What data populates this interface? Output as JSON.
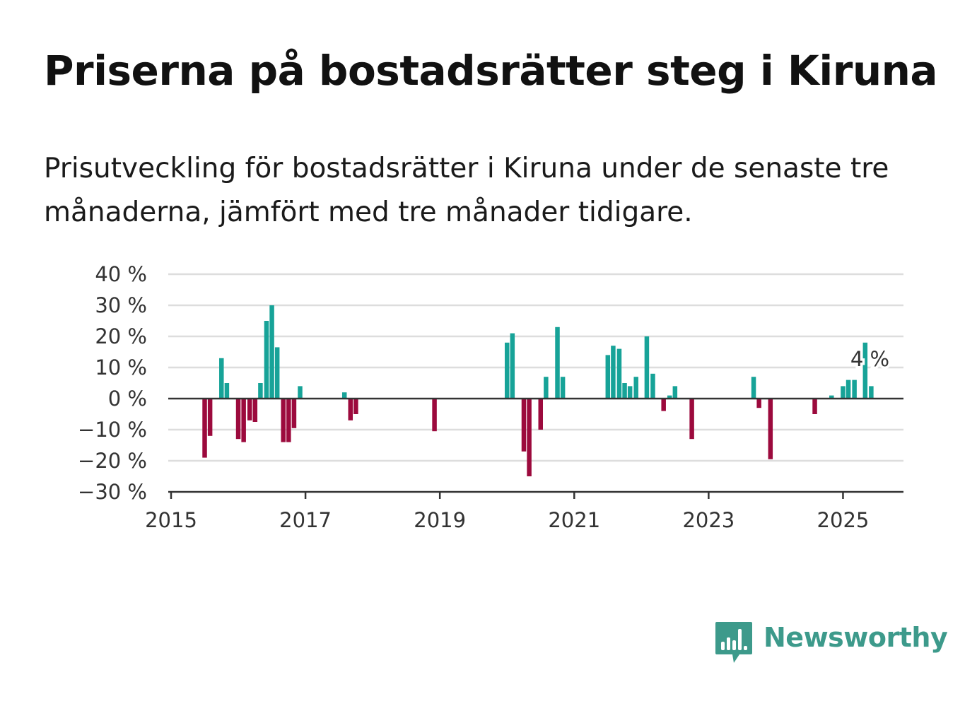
{
  "title": "Priserna på bostadsrätter steg i Kiruna",
  "subtitle": "Prisutveckling för bostadsrätter i Kiruna under de senaste tre månaderna, jämfört med tre månader tidigare.",
  "brand": {
    "name": "Newsworthy",
    "color": "#3d9a8b"
  },
  "colors": {
    "positive": "#17a398",
    "negative": "#9c0a3d",
    "grid": "#dddddd",
    "axis": "#333333"
  },
  "chart_data": {
    "type": "bar",
    "title": "Priserna på bostadsrätter steg i Kiruna",
    "xlabel": "",
    "ylabel": "",
    "ylim": [
      -30,
      40
    ],
    "yticks": [
      40,
      30,
      20,
      10,
      0,
      -10,
      -20,
      -30
    ],
    "ytick_labels": [
      "40 %",
      "30 %",
      "20 %",
      "10 %",
      "0 %",
      "−10 %",
      "−20 %",
      "−30 %"
    ],
    "xlim": [
      2015,
      2025.9
    ],
    "xticks": [
      2015,
      2017,
      2019,
      2021,
      2023,
      2025
    ],
    "xtick_labels": [
      "2015",
      "2017",
      "2019",
      "2021",
      "2023",
      "2025"
    ],
    "annotation": {
      "x": 2025.4,
      "label": "4 %"
    },
    "x": [
      2015.5,
      2015.58,
      2015.75,
      2015.83,
      2016.0,
      2016.08,
      2016.17,
      2016.25,
      2016.33,
      2016.42,
      2016.5,
      2016.58,
      2016.67,
      2016.75,
      2016.83,
      2016.92,
      2017.58,
      2017.67,
      2017.75,
      2018.92,
      2020.0,
      2020.08,
      2020.25,
      2020.33,
      2020.5,
      2020.58,
      2020.75,
      2020.83,
      2021.5,
      2021.58,
      2021.67,
      2021.75,
      2021.83,
      2021.92,
      2022.08,
      2022.17,
      2022.33,
      2022.42,
      2022.5,
      2022.75,
      2023.67,
      2023.75,
      2023.92,
      2024.58,
      2024.83,
      2025.0,
      2025.08,
      2025.17,
      2025.33,
      2025.42
    ],
    "values": [
      -19,
      -12,
      13,
      5,
      -13,
      -14,
      -7,
      -7.5,
      5,
      25,
      30,
      16.5,
      -14,
      -14,
      -9.5,
      4,
      2,
      -7,
      -5,
      -10.5,
      18,
      21,
      -17,
      -25,
      -10,
      7,
      23,
      7,
      14,
      17,
      16,
      5,
      4,
      7,
      20,
      8,
      -4,
      1,
      4,
      -13,
      7,
      -3,
      -19.5,
      -5,
      1,
      4,
      6,
      6,
      18,
      4
    ]
  }
}
